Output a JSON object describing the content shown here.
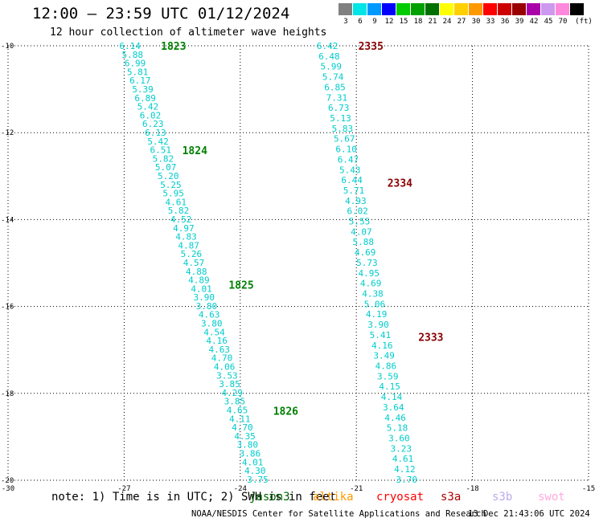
{
  "title": "12:00 — 23:59 UTC 01/12/2024",
  "subtitle": "12 hour collection of altimeter wave heights",
  "legend": {
    "unit": "(ft)",
    "bins": [
      {
        "label": "3",
        "color": "#808080"
      },
      {
        "label": "6",
        "color": "#00e5e5"
      },
      {
        "label": "9",
        "color": "#0099ff"
      },
      {
        "label": "12",
        "color": "#0000ff"
      },
      {
        "label": "15",
        "color": "#00cc00"
      },
      {
        "label": "18",
        "color": "#00a000"
      },
      {
        "label": "21",
        "color": "#007000"
      },
      {
        "label": "24",
        "color": "#ffff00"
      },
      {
        "label": "27",
        "color": "#ffd000"
      },
      {
        "label": "30",
        "color": "#ff9900"
      },
      {
        "label": "33",
        "color": "#ff0000"
      },
      {
        "label": "36",
        "color": "#cc0000"
      },
      {
        "label": "39",
        "color": "#990000"
      },
      {
        "label": "42",
        "color": "#aa00aa"
      },
      {
        "label": "45",
        "color": "#cc99ee"
      },
      {
        "label": "70",
        "color": "#ff88dd"
      },
      {
        "label": "",
        "color": "#000000"
      }
    ]
  },
  "map": {
    "lon_range": [
      -30,
      -15
    ],
    "lat_range": [
      -20,
      -10
    ],
    "lon_ticks": [
      "-30",
      "-27",
      "-24",
      "-21",
      "-18",
      "-15"
    ],
    "lat_ticks": [
      "-10",
      "-12",
      "-14",
      "-16",
      "-18",
      "-20"
    ],
    "grid_color": "#000000",
    "value_color": "#00cccc"
  },
  "tracks": [
    {
      "time_color": "#008000",
      "lon_start": -26.85,
      "lon_end": -23.55,
      "lat_start": -10.0,
      "lat_end": -19.98,
      "values": [
        "6.14",
        "5.88",
        "6.99",
        "5.81",
        "6.17",
        "5.39",
        "6.89",
        "5.42",
        "6.02",
        "6.23",
        "6.13",
        "5.42",
        "6.51",
        "5.82",
        "5.07",
        "5.20",
        "5.25",
        "5.95",
        "4.61",
        "5.82",
        "4.52",
        "4.97",
        "4.83",
        "4.87",
        "5.26",
        "4.57",
        "4.88",
        "4.89",
        "4.01",
        "3.90",
        "3.80",
        "4.63",
        "3.80",
        "4.54",
        "4.16",
        "4.63",
        "4.70",
        "4.06",
        "3.53",
        "3.85",
        "4.29",
        "3.85",
        "4.65",
        "4.11",
        "4.70",
        "4.35",
        "3.80",
        "3.86",
        "4.01",
        "4.30",
        "3.75"
      ],
      "times": [
        {
          "label": "1823",
          "lat": -10.0,
          "lon": -26.05
        },
        {
          "label": "1824",
          "lat": -12.4,
          "lon": -25.5
        },
        {
          "label": "1825",
          "lat": -15.5,
          "lon": -24.3
        },
        {
          "label": "1826",
          "lat": -18.4,
          "lon": -23.15
        }
      ]
    },
    {
      "time_color": "#880000",
      "lon_start": -21.75,
      "lon_end": -19.7,
      "lat_start": -10.0,
      "lat_end": -19.98,
      "values": [
        "6.42",
        "6.48",
        "5.99",
        "5.74",
        "6.85",
        "7.31",
        "6.73",
        "5.13",
        "5.83",
        "5.67",
        "6.10",
        "6.47",
        "5.43",
        "6.44",
        "5.71",
        "4.93",
        "6.02",
        "5.55",
        "4.07",
        "5.88",
        "4.69",
        "5.73",
        "4.95",
        "4.69",
        "4.38",
        "5.06",
        "4.19",
        "3.90",
        "5.41",
        "4.16",
        "3.49",
        "4.86",
        "3.59",
        "4.15",
        "4.14",
        "3.64",
        "4.46",
        "5.18",
        "3.60",
        "3.23",
        "4.61",
        "4.12",
        "3.70"
      ],
      "times": [
        {
          "label": "2335",
          "lat": -10.0,
          "lon": -20.95
        },
        {
          "label": "2334",
          "lat": -13.15,
          "lon": -20.2
        },
        {
          "label": "2333",
          "lat": -16.7,
          "lon": -19.4
        }
      ]
    }
  ],
  "note": "note: 1) Time is in UTC; 2) SWH is in feet",
  "satellites": [
    {
      "name": "jason3",
      "color": "#006600"
    },
    {
      "name": "altika",
      "color": "#ff9900"
    },
    {
      "name": "cryosat",
      "color": "#ff0000"
    },
    {
      "name": "s3a",
      "color": "#aa0000"
    },
    {
      "name": "s3b",
      "color": "#bbaaee"
    },
    {
      "name": "swot",
      "color": "#ffaadd"
    }
  ],
  "credit": "NOAA/NESDIS Center for Satellite Applications and Research",
  "timestamp": "13 Dec 21:43:06 UTC 2024"
}
